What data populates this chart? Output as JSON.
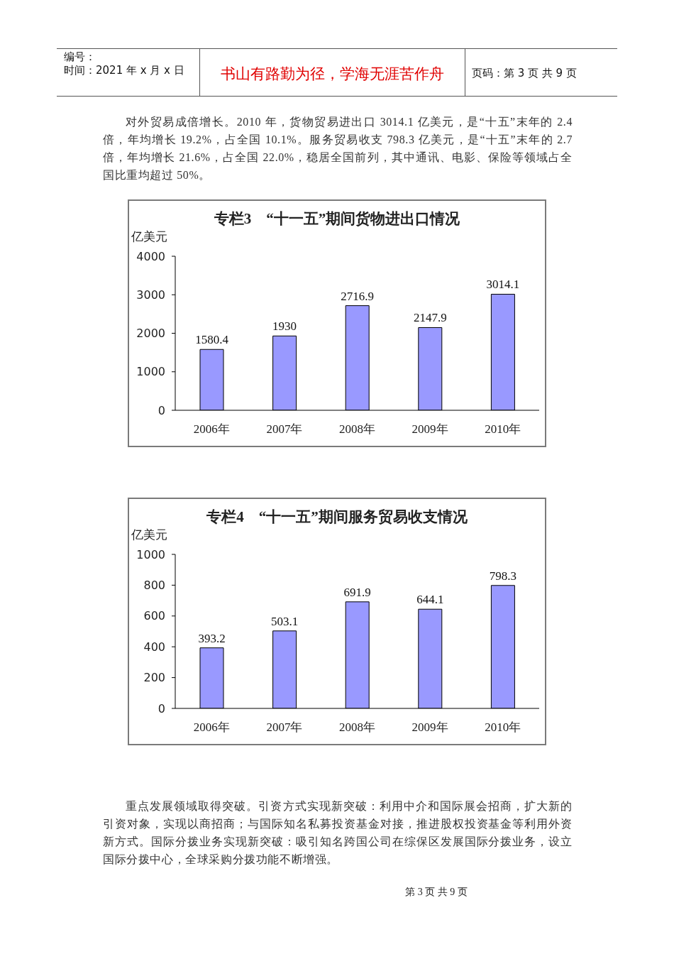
{
  "chart_data": [
    {
      "type": "other",
      "annotations": [
        "编号：",
        "时间：2021 年 x 月 x 日",
        "书山有路勤为径，学海无涯苦作舟",
        "页码：第 3 页 共 9 页",
        "对外贸易成倍增长。2010 年，货物贸易进出口 3014.1 亿美元，是“十五”末年的 2.4 倍，年均增长 19.2%，占全国 10.1%。服务贸易收支 798.3 亿美元，是“十五”末年的 2.7 倍，年均增长 21.6%，占全国 22.0%，稳居全国前列，其中通讯、电影、保险等领域占全国比重均超过 50%。"
      ]
    },
    {
      "type": "bar",
      "title": "专栏3    “十一五”期间货物进出口情况",
      "ylabel": "亿美元",
      "categories": [
        "2006年",
        "2007年",
        "2008年",
        "2009年",
        "2010年"
      ],
      "values": [
        1580.4,
        1930,
        2716.9,
        2147.9,
        3014.1
      ],
      "color": "#9999ff",
      "ylim": [
        0,
        4000
      ],
      "yticks": [
        0,
        1000,
        2000,
        3000,
        4000
      ],
      "data_labels": true
    },
    {
      "type": "bar",
      "title": "专栏4    “十一五”期间服务贸易收支情况",
      "ylabel": "亿美元",
      "categories": [
        "2006年",
        "2007年",
        "2008年",
        "2009年",
        "2010年"
      ],
      "values": [
        393.2,
        503.1,
        691.9,
        644.1,
        798.3
      ],
      "color": "#9999ff",
      "ylim": [
        0,
        1000
      ],
      "yticks": [
        0,
        200,
        400,
        600,
        800,
        1000
      ],
      "data_labels": true
    },
    {
      "type": "other",
      "annotations": [
        "重点发展领域取得突破。引资方式实现新突破：利用中介和国际展会招商，扩大新的引资对象，实现以商招商；与国际知名私募投资基金对接，推进股权投资基金等利用外资新方式。国际分拨业务实现新突破：吸引知名跨国公司在综保区发展国际分拨业务，设立国际分拨中心，全球采购分拨功能不断增强。",
        "第 3 页 共 9 页"
      ]
    }
  ]
}
